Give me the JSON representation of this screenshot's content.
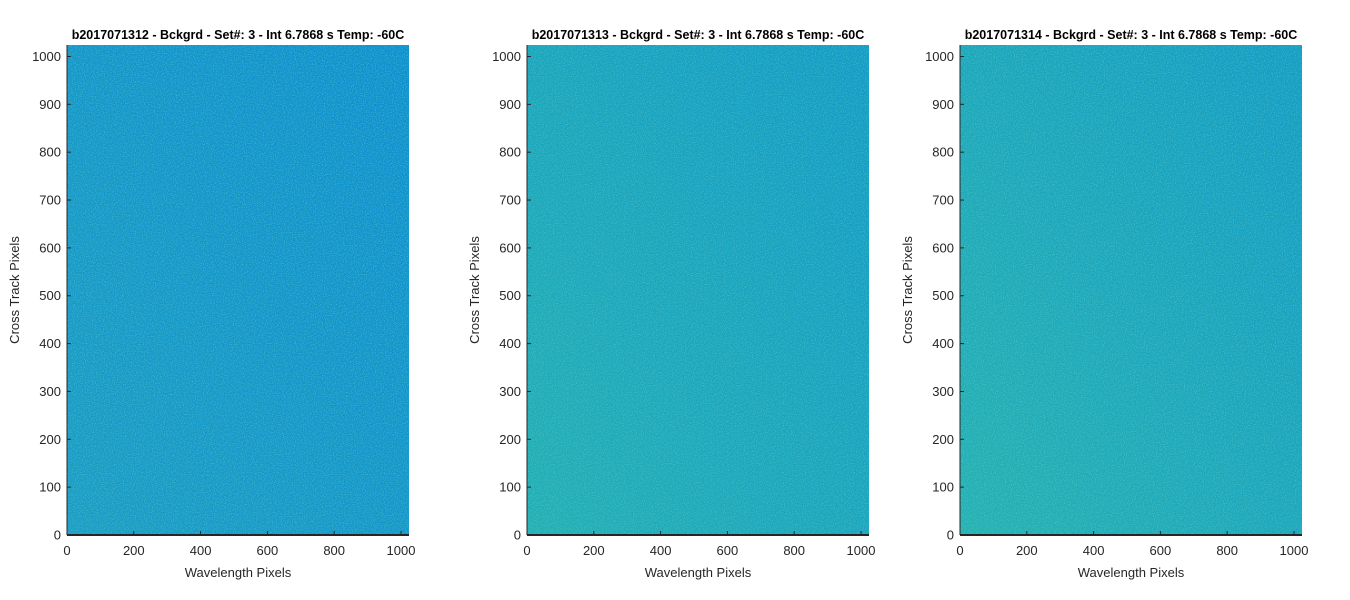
{
  "chart_data": [
    {
      "type": "heatmap",
      "title": "b2017071312 - Bckgrd - Set#: 3 - Int 6.7868 s Temp: -60C",
      "xlabel": "Wavelength Pixels",
      "ylabel": "Cross Track Pixels",
      "xlim": [
        0,
        1024
      ],
      "ylim": [
        0,
        1024
      ],
      "xticks": [
        0,
        200,
        400,
        600,
        800,
        1000
      ],
      "yticks": [
        0,
        100,
        200,
        300,
        400,
        500,
        600,
        700,
        800,
        900,
        1000
      ],
      "grid": false,
      "colors": {
        "left_edge": "#1a9cc4",
        "right_edge": "#0d8fcf",
        "noise": "#1fa7b8"
      }
    },
    {
      "type": "heatmap",
      "title": "b2017071313 - Bckgrd - Set#: 3 - Int 6.7868 s Temp: -60C",
      "xlabel": "Wavelength Pixels",
      "ylabel": "Cross Track Pixels",
      "xlim": [
        0,
        1024
      ],
      "ylim": [
        0,
        1024
      ],
      "xticks": [
        0,
        200,
        400,
        600,
        800,
        1000
      ],
      "yticks": [
        0,
        100,
        200,
        300,
        400,
        500,
        600,
        700,
        800,
        900,
        1000
      ],
      "grid": false,
      "colors": {
        "left_edge": "#22aeb4",
        "right_edge": "#129ac6",
        "noise": "#2fb8a6"
      }
    },
    {
      "type": "heatmap",
      "title": "b2017071314 - Bckgrd - Set#: 3 - Int 6.7868 s Temp: -60C",
      "xlabel": "Wavelength Pixels",
      "ylabel": "Cross Track Pixels",
      "xlim": [
        0,
        1024
      ],
      "ylim": [
        0,
        1024
      ],
      "xticks": [
        0,
        200,
        400,
        600,
        800,
        1000
      ],
      "yticks": [
        0,
        100,
        200,
        300,
        400,
        500,
        600,
        700,
        800,
        900,
        1000
      ],
      "grid": false,
      "colors": {
        "left_edge": "#24b0b2",
        "right_edge": "#139bc4",
        "noise": "#31baa4"
      }
    }
  ]
}
